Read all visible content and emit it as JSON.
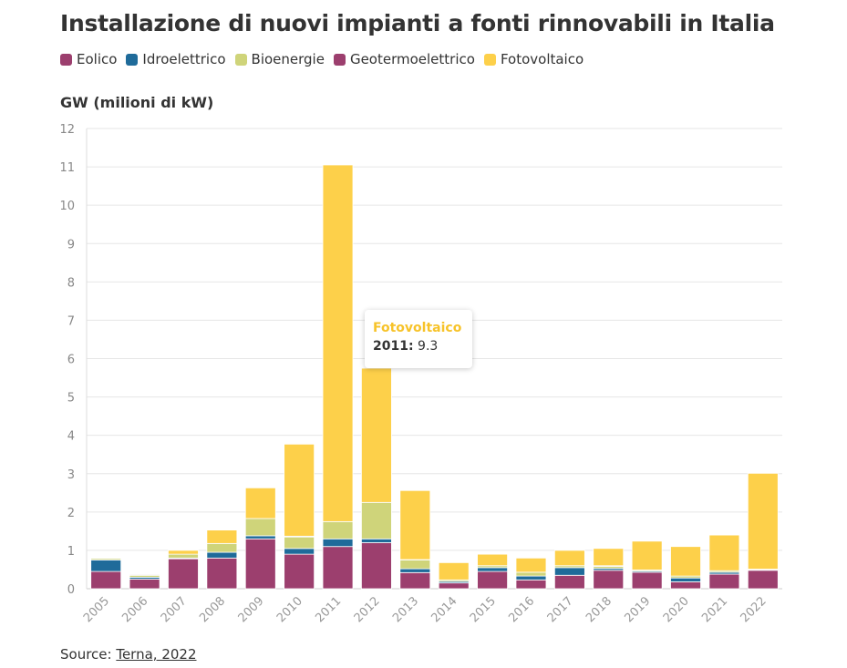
{
  "title": "Installazione di nuovi impianti a fonti rinnovabili in Italia",
  "source": {
    "prefix": "Source: ",
    "link_text": "Terna, 2022"
  },
  "tooltip": {
    "series": "Fotovoltaico",
    "year": "2011:",
    "value": "9.3"
  },
  "colors": {
    "Eolico": "#9c3f6e",
    "Idroelettrico": "#1f6b9a",
    "Bioenergie": "#cfd47a",
    "Geotermoelettrico": "#9c3f6e",
    "Fotovoltaico": "#fdd04a"
  },
  "chart_data": {
    "type": "bar",
    "stacked": true,
    "ylabel": "GW (milioni di kW)",
    "ylim": [
      0,
      12
    ],
    "yticks": [
      0,
      1,
      2,
      3,
      4,
      5,
      6,
      7,
      8,
      9,
      10,
      11,
      12
    ],
    "grid": true,
    "legend_position": "top-left",
    "categories": [
      "2005",
      "2006",
      "2007",
      "2008",
      "2009",
      "2010",
      "2011",
      "2012",
      "2013",
      "2014",
      "2015",
      "2016",
      "2017",
      "2018",
      "2019",
      "2020",
      "2021",
      "2022"
    ],
    "series": [
      {
        "name": "Eolico",
        "values": [
          0.45,
          0.25,
          0.78,
          0.8,
          1.3,
          0.9,
          1.1,
          1.2,
          0.42,
          0.15,
          0.45,
          0.23,
          0.35,
          0.48,
          0.43,
          0.18,
          0.38,
          0.48
        ]
      },
      {
        "name": "Idroelettrico",
        "values": [
          0.3,
          0.05,
          0.02,
          0.15,
          0.08,
          0.15,
          0.2,
          0.1,
          0.1,
          0.04,
          0.1,
          0.1,
          0.2,
          0.05,
          0.03,
          0.1,
          0.05,
          0.02
        ]
      },
      {
        "name": "Bioenergie",
        "values": [
          0.04,
          0.05,
          0.1,
          0.23,
          0.45,
          0.3,
          0.45,
          0.95,
          0.23,
          0.04,
          0.05,
          0.1,
          0.05,
          0.05,
          0.03,
          0.05,
          0.04,
          0.0
        ]
      },
      {
        "name": "Geotermoelettrico",
        "values": [
          0.01,
          0.02,
          0.0,
          0.0,
          0.0,
          0.02,
          0.0,
          0.0,
          0.01,
          0.0,
          0.0,
          0.0,
          0.0,
          0.02,
          0.0,
          0.0,
          0.0,
          0.01
        ]
      },
      {
        "name": "Fotovoltaico",
        "values": [
          0.0,
          0.0,
          0.1,
          0.35,
          0.8,
          2.4,
          9.3,
          3.5,
          1.8,
          0.45,
          0.3,
          0.37,
          0.4,
          0.45,
          0.75,
          0.77,
          0.93,
          2.5
        ]
      }
    ]
  }
}
